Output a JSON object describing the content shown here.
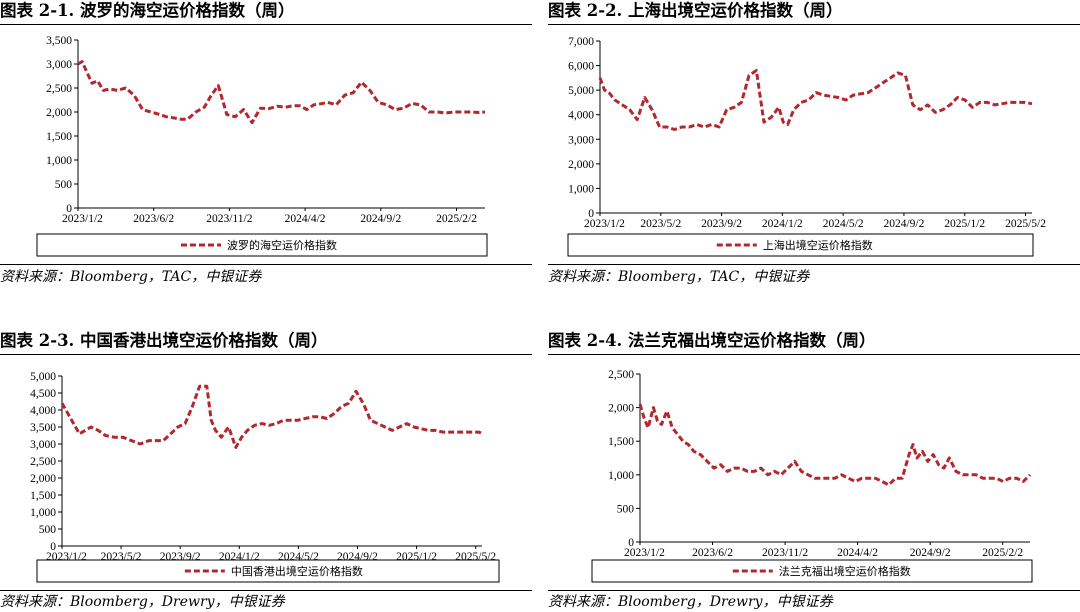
{
  "charts": [
    {
      "title": "图表 2-1. 波罗的海空运价格指数（周）",
      "source": "资料来源：Bloomberg，TAC，中银证券",
      "legend": "波罗的海空运价格指数",
      "xticks": [
        "2023/1/2",
        "2023/6/2",
        "2023/11/2",
        "2024/4/2",
        "2024/9/2",
        "2025/2/2"
      ]
    },
    {
      "title": "图表 2-2. 上海出境空运价格指数（周）",
      "source": "资料来源：Bloomberg，TAC，中银证券",
      "legend": "上海出境空运价格指数",
      "xticks": [
        "2023/1/2",
        "2023/5/2",
        "2023/9/2",
        "2024/1/2",
        "2024/5/2",
        "2024/9/2",
        "2025/1/2",
        "2025/5/2"
      ]
    },
    {
      "title": "图表 2-3. 中国香港出境空运价格指数（周）",
      "source": "资料来源：Bloomberg，Drewry，中银证券",
      "legend": "中国香港出境空运价格指数",
      "xticks": [
        "2023/1/2",
        "2023/5/2",
        "2023/9/2",
        "2024/1/2",
        "2024/5/2",
        "2024/9/2",
        "2025/1/2",
        "2025/5/2"
      ]
    },
    {
      "title": "图表 2-4. 法兰克福出境空运价格指数（周）",
      "source": "资料来源：Bloomberg，Drewry，中银证券",
      "legend": "法兰克福出境空运价格指数",
      "xticks": [
        "2023/1/2",
        "2023/6/2",
        "2023/11/2",
        "2024/4/2",
        "2024/9/2",
        "2025/2/2"
      ]
    }
  ],
  "colors": {
    "series": "#b2282e"
  },
  "chart_data": [
    {
      "type": "line",
      "title": "",
      "xlabel": "",
      "ylabel": "",
      "ylim": [
        0,
        3500
      ],
      "yticks": [
        0,
        500,
        1000,
        1500,
        2000,
        2500,
        3000,
        3500
      ],
      "x": [
        0,
        0.3,
        0.6,
        1,
        1.4,
        1.8,
        2.3,
        2.8,
        3.4,
        4,
        4.6,
        5.2,
        5.8,
        6.3,
        6.8,
        7.3,
        7.8,
        8.4,
        9,
        9.5,
        10,
        10.6,
        11.2,
        11.8,
        12.4,
        13,
        13.6,
        14.2,
        14.8,
        15.3,
        15.8,
        16.3,
        16.8,
        17.3,
        17.8,
        18.4,
        19,
        19.6,
        20.2,
        20.8,
        21.4,
        22,
        22.6,
        23.2,
        23.8,
        24.4,
        25,
        25.6,
        26.2,
        26.8,
        27.4,
        28,
        28.5,
        29
      ],
      "series": [
        {
          "name": "波罗的海空运价格指数",
          "values": [
            3000,
            3050,
            2850,
            2600,
            2650,
            2450,
            2480,
            2450,
            2500,
            2350,
            2050,
            2000,
            1950,
            1900,
            1880,
            1850,
            1850,
            2000,
            2100,
            2350,
            2550,
            1950,
            1900,
            2050,
            1780,
            2080,
            2070,
            2120,
            2100,
            2130,
            2130,
            2050,
            2150,
            2170,
            2200,
            2150,
            2350,
            2400,
            2620,
            2450,
            2200,
            2150,
            2050,
            2080,
            2180,
            2150,
            2000,
            2000,
            1980,
            2000,
            2000,
            2000,
            1990,
            2000
          ]
        }
      ]
    },
    {
      "type": "line",
      "title": "",
      "xlabel": "",
      "ylabel": "",
      "ylim": [
        0,
        7000
      ],
      "yticks": [
        0,
        1000,
        2000,
        3000,
        4000,
        5000,
        6000,
        7000
      ],
      "x": [
        0,
        0.3,
        0.6,
        1,
        1.5,
        2,
        2.5,
        3,
        3.5,
        4,
        4.5,
        5,
        5.5,
        6,
        6.5,
        7,
        7.5,
        8,
        8.5,
        9,
        9.5,
        10,
        10.5,
        11,
        11.5,
        12,
        12.3,
        12.6,
        13,
        13.5,
        14,
        14.5,
        15,
        15.5,
        16,
        16.5,
        17,
        17.5,
        18,
        18.5,
        19,
        19.5,
        20,
        20.5,
        21,
        21.5,
        22,
        22.5,
        23,
        23.5,
        24,
        24.5,
        25,
        25.5,
        26,
        26.5,
        27,
        27.5,
        28,
        28.5,
        29
      ],
      "series": [
        {
          "name": "上海出境空运价格指数",
          "values": [
            5500,
            5000,
            4900,
            4600,
            4400,
            4200,
            3800,
            4700,
            4200,
            3500,
            3500,
            3400,
            3500,
            3500,
            3600,
            3500,
            3600,
            3500,
            4200,
            4300,
            4500,
            5600,
            5800,
            3700,
            3900,
            4300,
            3700,
            3600,
            4200,
            4500,
            4600,
            4900,
            4800,
            4750,
            4700,
            4600,
            4800,
            4850,
            4900,
            5100,
            5300,
            5500,
            5700,
            5600,
            4400,
            4200,
            4400,
            4100,
            4200,
            4400,
            4700,
            4600,
            4300,
            4500,
            4500,
            4400,
            4450,
            4500,
            4500,
            4500,
            4450
          ]
        }
      ]
    },
    {
      "type": "line",
      "title": "",
      "xlabel": "",
      "ylabel": "",
      "ylim": [
        0,
        5000
      ],
      "yticks": [
        0,
        500,
        1000,
        1500,
        2000,
        2500,
        3000,
        3500,
        4000,
        4500,
        5000
      ],
      "x": [
        0,
        0.4,
        0.8,
        1.2,
        1.6,
        2,
        2.5,
        3,
        3.6,
        4.2,
        4.8,
        5.4,
        6,
        6.5,
        7,
        7.5,
        8,
        8.5,
        9,
        9.5,
        10,
        10.3,
        10.6,
        11,
        11.5,
        12,
        12.4,
        12.8,
        13.3,
        13.8,
        14.3,
        14.8,
        15.3,
        15.8,
        16.3,
        16.8,
        17.3,
        17.8,
        18.3,
        18.8,
        19.3,
        19.8,
        20.3,
        20.8,
        21.3,
        21.8,
        22.3,
        22.8,
        23.3,
        23.8,
        24.3,
        24.8,
        25.3,
        25.8,
        26.3,
        26.8,
        27.3,
        27.8,
        28.3,
        28.8,
        29
      ],
      "series": [
        {
          "name": "中国香港出境空运价格指数",
          "values": [
            4200,
            3900,
            3600,
            3300,
            3400,
            3500,
            3400,
            3250,
            3200,
            3200,
            3100,
            3000,
            3100,
            3100,
            3100,
            3300,
            3500,
            3600,
            4100,
            4700,
            4700,
            3700,
            3400,
            3200,
            3500,
            2900,
            3200,
            3400,
            3550,
            3600,
            3550,
            3600,
            3700,
            3700,
            3700,
            3750,
            3800,
            3800,
            3750,
            3900,
            4100,
            4200,
            4550,
            4200,
            3700,
            3600,
            3500,
            3400,
            3500,
            3600,
            3500,
            3450,
            3400,
            3400,
            3350,
            3350,
            3350,
            3350,
            3350,
            3350,
            3300
          ]
        }
      ]
    },
    {
      "type": "line",
      "title": "",
      "xlabel": "",
      "ylabel": "",
      "ylim": [
        0,
        2500
      ],
      "yticks": [
        0,
        500,
        1000,
        1500,
        2000,
        2500
      ],
      "x": [
        0,
        0.3,
        0.6,
        1,
        1.3,
        1.6,
        2,
        2.4,
        2.8,
        3.2,
        3.6,
        4,
        4.5,
        5,
        5.5,
        6,
        6.5,
        7,
        7.5,
        8,
        8.5,
        9,
        9.5,
        10,
        10.5,
        11,
        11.5,
        12,
        12.5,
        13,
        13.5,
        14,
        14.5,
        15,
        15.5,
        16,
        16.5,
        17,
        17.5,
        18,
        18.5,
        19,
        19.5,
        20,
        20.3,
        20.6,
        21,
        21.4,
        21.8,
        22.2,
        22.6,
        23,
        23.5,
        24,
        24.5,
        25,
        25.5,
        26,
        26.5,
        27,
        27.5,
        28,
        28.5,
        29
      ],
      "series": [
        {
          "name": "法兰克福出境空运价格指数",
          "values": [
            2050,
            1850,
            1700,
            2000,
            1800,
            1750,
            1950,
            1700,
            1600,
            1500,
            1450,
            1350,
            1300,
            1200,
            1100,
            1150,
            1050,
            1100,
            1100,
            1050,
            1050,
            1100,
            1000,
            1050,
            1000,
            1100,
            1200,
            1050,
            1000,
            950,
            950,
            950,
            950,
            1000,
            950,
            900,
            950,
            950,
            950,
            900,
            850,
            950,
            950,
            1300,
            1450,
            1250,
            1350,
            1200,
            1300,
            1150,
            1100,
            1250,
            1050,
            1000,
            1000,
            1000,
            950,
            950,
            950,
            900,
            950,
            950,
            900,
            1000
          ]
        }
      ]
    }
  ]
}
